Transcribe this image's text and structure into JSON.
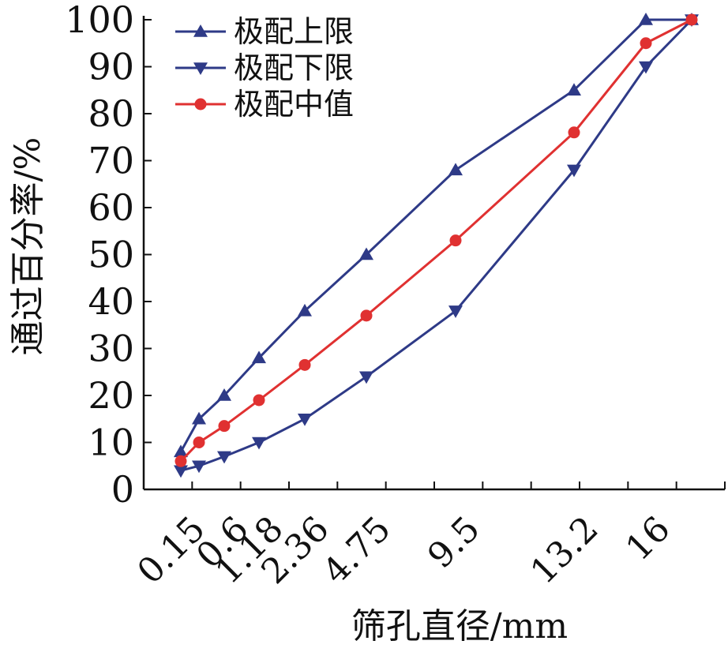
{
  "chart_data": {
    "type": "line",
    "xlabel": "筛孔直径/mm",
    "ylabel": "通过百分率/%",
    "ylim": [
      0,
      100
    ],
    "yticks": [
      "0",
      "10",
      "20",
      "30",
      "40",
      "50",
      "60",
      "70",
      "80",
      "90",
      "100"
    ],
    "x": [
      0.15,
      0.3,
      0.6,
      1.18,
      2.36,
      4.75,
      9.5,
      13.2,
      16
    ],
    "xticks": [
      {
        "label": "0.15",
        "x": 0.15
      },
      {
        "label": "0.6",
        "x": 0.6
      },
      {
        "label": "1.18",
        "x": 1.18
      },
      {
        "label": "2.36",
        "x": 2.36
      },
      {
        "label": "4.75",
        "x": 4.75
      },
      {
        "label": "9.5",
        "x": 9.5
      },
      {
        "label": "13.2",
        "x": 13.2
      },
      {
        "label": "16",
        "x": 16
      }
    ],
    "legend_position": "top-left",
    "grid": false,
    "series": [
      {
        "name": "极配上限",
        "marker": "triangle-up",
        "color": "#2e3a87",
        "points": [
          {
            "x": 0.15,
            "y": 8
          },
          {
            "x": 0.3,
            "y": 15
          },
          {
            "x": 0.6,
            "y": 20
          },
          {
            "x": 1.18,
            "y": 28
          },
          {
            "x": 2.36,
            "y": 38
          },
          {
            "x": 4.75,
            "y": 50
          },
          {
            "x": 9.5,
            "y": 68
          },
          {
            "x": 13.2,
            "y": 85
          },
          {
            "x": 16,
            "y": 100
          },
          {
            "x": 19,
            "y": 100
          }
        ]
      },
      {
        "name": "极配下限",
        "marker": "triangle-down",
        "color": "#2e3a87",
        "points": [
          {
            "x": 0.15,
            "y": 4
          },
          {
            "x": 0.3,
            "y": 5
          },
          {
            "x": 0.6,
            "y": 7
          },
          {
            "x": 1.18,
            "y": 10
          },
          {
            "x": 2.36,
            "y": 15
          },
          {
            "x": 4.75,
            "y": 24
          },
          {
            "x": 9.5,
            "y": 38
          },
          {
            "x": 13.2,
            "y": 68
          },
          {
            "x": 16,
            "y": 90
          },
          {
            "x": 19,
            "y": 100
          }
        ]
      },
      {
        "name": "极配中值",
        "marker": "circle",
        "color": "#e03131",
        "points": [
          {
            "x": 0.15,
            "y": 6
          },
          {
            "x": 0.3,
            "y": 10
          },
          {
            "x": 0.6,
            "y": 13.5
          },
          {
            "x": 1.18,
            "y": 19
          },
          {
            "x": 2.36,
            "y": 26.5
          },
          {
            "x": 4.75,
            "y": 37
          },
          {
            "x": 9.5,
            "y": 53
          },
          {
            "x": 13.2,
            "y": 76
          },
          {
            "x": 16,
            "y": 95
          },
          {
            "x": 19,
            "y": 100
          }
        ]
      }
    ]
  }
}
